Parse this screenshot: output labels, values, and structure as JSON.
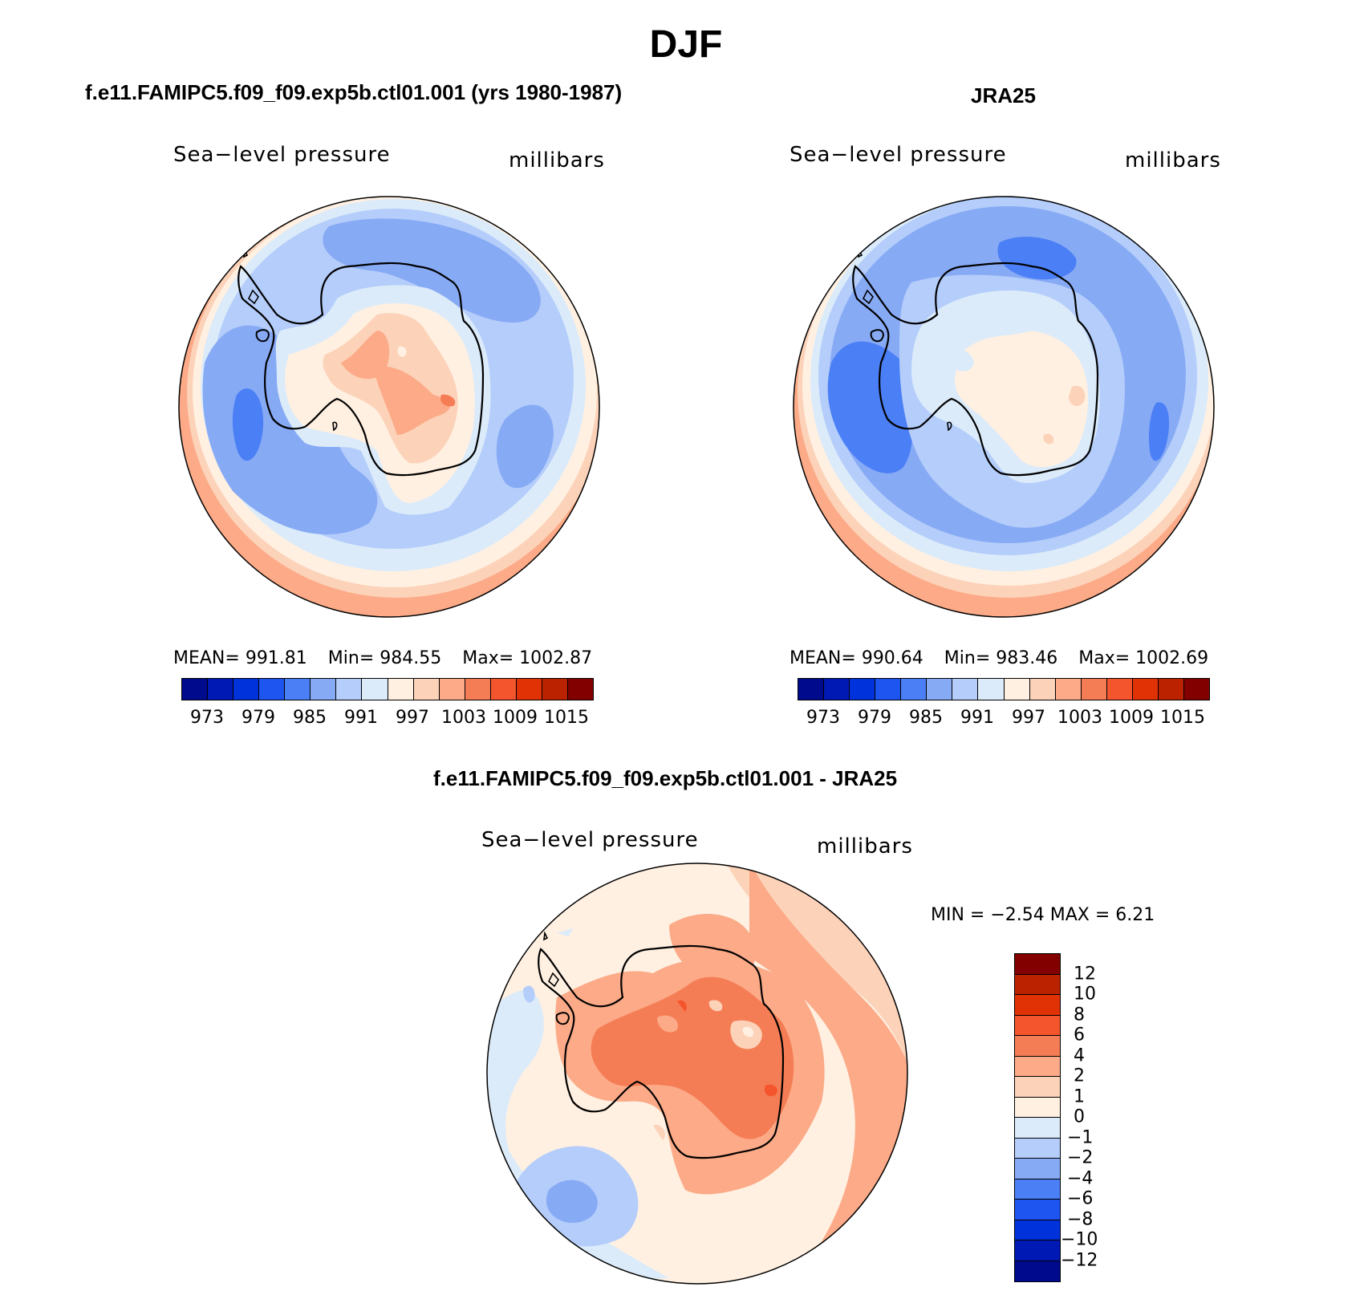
{
  "title": "DJF",
  "colors": {
    "scale": [
      "#000a8c",
      "#0019b4",
      "#0032dc",
      "#1e55f0",
      "#4b7ff5",
      "#87aaf5",
      "#b4cdfa",
      "#dbebfa",
      "#fff0e1",
      "#fcd2b9",
      "#fcaa87",
      "#f57d55",
      "#f5552d",
      "#e13205",
      "#bb2300",
      "#820000"
    ],
    "coast": "#000000"
  },
  "panels": {
    "left": {
      "header": "f.e11.FAMIPC5.f09_f09.exp5b.ctl01.001 (yrs 1980-1987)",
      "variable": "Sea−level pressure",
      "units": "millibars",
      "mean": "MEAN=  991.81",
      "min": "Min=  984.55",
      "max": "Max=  1002.87"
    },
    "right": {
      "header": "JRA25",
      "variable": "Sea−level pressure",
      "units": "millibars",
      "mean": "MEAN=  990.64",
      "min": "Min=  983.46",
      "max": "Max=  1002.69"
    },
    "diff": {
      "header": "f.e11.FAMIPC5.f09_f09.exp5b.ctl01.001 - JRA25",
      "variable": "Sea−level pressure",
      "units": "millibars",
      "minmax": "MIN =   −2.54  MAX =     6.21"
    }
  },
  "horizontal_colorbar_ticks": [
    "973",
    "979",
    "985",
    "991",
    "997",
    "1003",
    "1009",
    "1015"
  ],
  "vertical_colorbar_ticks": [
    "12",
    "10",
    "8",
    "6",
    "4",
    "2",
    "1",
    "0",
    "−1",
    "−2",
    "−4",
    "−6",
    "−8",
    "−10",
    "−12"
  ]
}
